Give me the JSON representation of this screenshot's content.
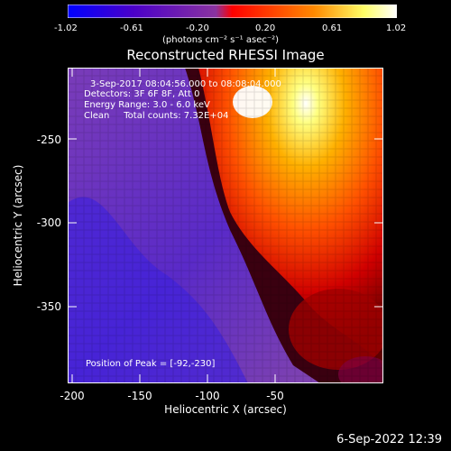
{
  "colorbar": {
    "ticks": [
      "-1.02",
      "-0.61",
      "-0.20",
      "0.20",
      "0.61",
      "1.02"
    ],
    "units": "(photons cm⁻² s⁻¹ asec⁻²)",
    "stops": [
      "#0000ff",
      "#4b00c8",
      "#8a33a0",
      "#ff0000",
      "#ff8a00",
      "#ffff66",
      "#ffffff"
    ]
  },
  "title": "Reconstructed RHESSI Image",
  "info": {
    "line1": "3-Sep-2017 08:04:56.000 to 08:08:04.000",
    "line2": "Detectors: 3F 6F 8F, Att 0",
    "line3": "Energy Range: 3.0 - 6.0 keV",
    "line4": "Clean     Total counts: 7.32E+04",
    "peak": "Position of Peak = [-92,-230]"
  },
  "axes": {
    "xlabel": "Heliocentric X (arcsec)",
    "ylabel": "Heliocentric Y (arcsec)",
    "xticks": [
      "-200",
      "-150",
      "-100",
      "-50"
    ],
    "yticks": [
      "-250",
      "-300",
      "-350"
    ]
  },
  "timestamp": "6-Sep-2022 12:39"
}
